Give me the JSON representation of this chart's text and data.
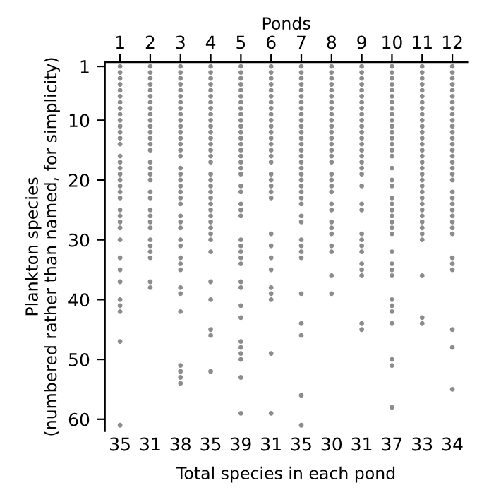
{
  "chart_data": {
    "type": "scatter",
    "xlabel": "Ponds",
    "annotations": [
      "Total species in each pond"
    ],
    "ylabel": "Plankton species\n(numbered rather than named, for simplicity)",
    "xlim": [
      0.5,
      12.5
    ],
    "totals": [
      "35",
      "31",
      "38",
      "35",
      "39",
      "31",
      "35",
      "30",
      "31",
      "37",
      "33",
      "34"
    ],
    "xticks": [
      1,
      2,
      3,
      4,
      5,
      6,
      7,
      8,
      9,
      10,
      11,
      12
    ],
    "ylim": [
      62,
      0.3
    ],
    "yticks": [
      1,
      10,
      20,
      30,
      40,
      50,
      60
    ],
    "grid": false,
    "marker": "circle",
    "series": [
      {
        "color": "#8c8c8c",
        "x": [
          1,
          1,
          1,
          1,
          1,
          1,
          1,
          1,
          1,
          1,
          1,
          1,
          1,
          1,
          1,
          1,
          1,
          1,
          1,
          1,
          1,
          1,
          1,
          1,
          1,
          1,
          1,
          1,
          1,
          1,
          1,
          1,
          1,
          1,
          1
        ],
        "values": [
          1,
          2,
          3,
          4,
          5,
          6,
          7,
          8,
          9,
          10,
          11,
          12,
          13,
          14,
          16,
          17,
          18,
          19,
          20,
          21,
          22,
          23,
          25,
          26,
          27,
          28,
          30,
          33,
          35,
          37,
          40,
          41,
          42,
          47,
          61
        ]
      },
      {
        "color": "#8c8c8c",
        "x": [
          2,
          2,
          2,
          2,
          2,
          2,
          2,
          2,
          2,
          2,
          2,
          2,
          2,
          2,
          2,
          2,
          2,
          2,
          2,
          2,
          2,
          2,
          2,
          2,
          2,
          2,
          2,
          2,
          2,
          2,
          2
        ],
        "values": [
          1,
          2,
          3,
          4,
          5,
          6,
          7,
          8,
          9,
          10,
          11,
          12,
          13,
          14,
          15,
          17,
          18,
          19,
          20,
          22,
          23,
          25,
          26,
          27,
          28,
          30,
          31,
          32,
          33,
          37,
          38
        ]
      },
      {
        "color": "#8c8c8c",
        "x": [
          3,
          3,
          3,
          3,
          3,
          3,
          3,
          3,
          3,
          3,
          3,
          3,
          3,
          3,
          3,
          3,
          3,
          3,
          3,
          3,
          3,
          3,
          3,
          3,
          3,
          3,
          3,
          3,
          3,
          3,
          3,
          3,
          3,
          3,
          3,
          3,
          3,
          3
        ],
        "values": [
          1,
          2,
          3,
          4,
          5,
          6,
          7,
          8,
          9,
          10,
          11,
          12,
          13,
          14,
          15,
          16,
          18,
          19,
          20,
          21,
          22,
          23,
          24,
          26,
          27,
          28,
          30,
          31,
          33,
          34,
          35,
          38,
          39,
          42,
          51,
          52,
          53,
          54
        ]
      },
      {
        "color": "#8c8c8c",
        "x": [
          4,
          4,
          4,
          4,
          4,
          4,
          4,
          4,
          4,
          4,
          4,
          4,
          4,
          4,
          4,
          4,
          4,
          4,
          4,
          4,
          4,
          4,
          4,
          4,
          4,
          4,
          4,
          4,
          4,
          4,
          4,
          4,
          4,
          4,
          4
        ],
        "values": [
          1,
          2,
          3,
          4,
          5,
          6,
          7,
          8,
          9,
          10,
          11,
          12,
          13,
          14,
          15,
          16,
          17,
          19,
          20,
          21,
          22,
          23,
          24,
          25,
          26,
          27,
          28,
          29,
          30,
          32,
          37,
          40,
          45,
          46,
          52
        ]
      },
      {
        "color": "#8c8c8c",
        "x": [
          5,
          5,
          5,
          5,
          5,
          5,
          5,
          5,
          5,
          5,
          5,
          5,
          5,
          5,
          5,
          5,
          5,
          5,
          5,
          5,
          5,
          5,
          5,
          5,
          5,
          5,
          5,
          5,
          5,
          5,
          5,
          5,
          5,
          5,
          5,
          5,
          5,
          5,
          5
        ],
        "values": [
          1,
          2,
          3,
          4,
          5,
          6,
          7,
          8,
          9,
          10,
          11,
          12,
          13,
          14,
          15,
          16,
          17,
          18,
          19,
          21,
          22,
          24,
          25,
          26,
          30,
          31,
          32,
          33,
          34,
          37,
          38,
          41,
          43,
          47,
          48,
          49,
          50,
          53,
          59
        ]
      },
      {
        "color": "#8c8c8c",
        "x": [
          6,
          6,
          6,
          6,
          6,
          6,
          6,
          6,
          6,
          6,
          6,
          6,
          6,
          6,
          6,
          6,
          6,
          6,
          6,
          6,
          6,
          6,
          6,
          6,
          6,
          6,
          6,
          6,
          6,
          6,
          6
        ],
        "values": [
          1,
          2,
          3,
          4,
          5,
          6,
          7,
          8,
          9,
          10,
          11,
          12,
          13,
          14,
          15,
          16,
          17,
          19,
          20,
          21,
          22,
          23,
          29,
          31,
          33,
          35,
          38,
          39,
          40,
          49,
          59
        ]
      },
      {
        "color": "#8c8c8c",
        "x": [
          7,
          7,
          7,
          7,
          7,
          7,
          7,
          7,
          7,
          7,
          7,
          7,
          7,
          7,
          7,
          7,
          7,
          7,
          7,
          7,
          7,
          7,
          7,
          7,
          7,
          7,
          7,
          7,
          7,
          7,
          7,
          7,
          7,
          7,
          7
        ],
        "values": [
          1,
          2,
          3,
          4,
          5,
          6,
          7,
          8,
          9,
          10,
          11,
          12,
          13,
          14,
          15,
          16,
          17,
          18,
          19,
          20,
          21,
          22,
          23,
          24,
          26,
          27,
          30,
          31,
          32,
          33,
          39,
          44,
          46,
          56,
          61
        ]
      },
      {
        "color": "#8c8c8c",
        "x": [
          8,
          8,
          8,
          8,
          8,
          8,
          8,
          8,
          8,
          8,
          8,
          8,
          8,
          8,
          8,
          8,
          8,
          8,
          8,
          8,
          8,
          8,
          8,
          8,
          8,
          8,
          8,
          8,
          8,
          8
        ],
        "values": [
          1,
          2,
          3,
          4,
          5,
          6,
          7,
          8,
          9,
          10,
          11,
          12,
          13,
          14,
          15,
          16,
          17,
          19,
          20,
          21,
          22,
          24,
          25,
          27,
          28,
          29,
          31,
          32,
          36,
          39
        ]
      },
      {
        "color": "#8c8c8c",
        "x": [
          9,
          9,
          9,
          9,
          9,
          9,
          9,
          9,
          9,
          9,
          9,
          9,
          9,
          9,
          9,
          9,
          9,
          9,
          9,
          9,
          9,
          9,
          9,
          9,
          9,
          9,
          9,
          9,
          9,
          9,
          9
        ],
        "values": [
          1,
          2,
          3,
          4,
          5,
          6,
          7,
          8,
          9,
          10,
          11,
          12,
          13,
          14,
          15,
          16,
          17,
          18,
          19,
          21,
          24,
          25,
          29,
          30,
          31,
          32,
          34,
          35,
          36,
          44,
          45
        ]
      },
      {
        "color": "#8c8c8c",
        "x": [
          10,
          10,
          10,
          10,
          10,
          10,
          10,
          10,
          10,
          10,
          10,
          10,
          10,
          10,
          10,
          10,
          10,
          10,
          10,
          10,
          10,
          10,
          10,
          10,
          10,
          10,
          10,
          10,
          10,
          10,
          10,
          10,
          10,
          10,
          10,
          10,
          10
        ],
        "values": [
          1,
          2,
          3,
          4,
          5,
          6,
          7,
          8,
          9,
          10,
          11,
          12,
          13,
          14,
          15,
          16,
          18,
          20,
          21,
          23,
          24,
          25,
          26,
          27,
          28,
          29,
          32,
          34,
          35,
          36,
          40,
          41,
          42,
          44,
          50,
          51,
          58
        ]
      },
      {
        "color": "#8c8c8c",
        "x": [
          11,
          11,
          11,
          11,
          11,
          11,
          11,
          11,
          11,
          11,
          11,
          11,
          11,
          11,
          11,
          11,
          11,
          11,
          11,
          11,
          11,
          11,
          11,
          11,
          11,
          11,
          11,
          11,
          11,
          11,
          11,
          11,
          11
        ],
        "values": [
          1,
          2,
          3,
          4,
          5,
          6,
          7,
          8,
          9,
          10,
          11,
          12,
          13,
          14,
          15,
          16,
          17,
          18,
          19,
          20,
          21,
          22,
          23,
          24,
          25,
          26,
          27,
          28,
          29,
          30,
          36,
          43,
          44
        ]
      },
      {
        "color": "#8c8c8c",
        "x": [
          12,
          12,
          12,
          12,
          12,
          12,
          12,
          12,
          12,
          12,
          12,
          12,
          12,
          12,
          12,
          12,
          12,
          12,
          12,
          12,
          12,
          12,
          12,
          12,
          12,
          12,
          12,
          12,
          12,
          12,
          12,
          12,
          12,
          12
        ],
        "values": [
          1,
          2,
          3,
          4,
          5,
          6,
          7,
          8,
          9,
          10,
          11,
          12,
          13,
          14,
          15,
          16,
          17,
          18,
          19,
          20,
          22,
          23,
          24,
          25,
          26,
          27,
          28,
          29,
          33,
          34,
          35,
          45,
          48,
          55
        ]
      }
    ]
  }
}
